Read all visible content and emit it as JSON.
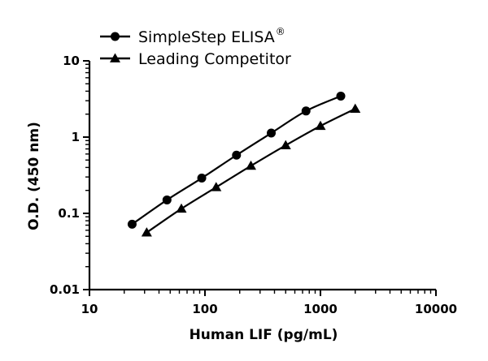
{
  "chart_data": {
    "type": "line",
    "xlabel": "Human LIF (pg/mL)",
    "ylabel": "O.D. (450 nm)",
    "x_scale": "log",
    "y_scale": "log",
    "xlim": [
      10,
      10000
    ],
    "ylim": [
      0.01,
      10
    ],
    "x_ticks": [
      10,
      100,
      1000,
      10000
    ],
    "x_tick_labels": [
      "10",
      "100",
      "1000",
      "10000"
    ],
    "y_ticks": [
      0.01,
      0.1,
      1,
      10
    ],
    "y_tick_labels": [
      "0.01",
      "0.1",
      "1",
      "10"
    ],
    "grid": false,
    "legend_position": "top-left",
    "series": [
      {
        "name": "SimpleStep ELISA",
        "name_sup": "®",
        "marker": "circle",
        "color": "#000000",
        "x": [
          23.4,
          46.9,
          93.8,
          187.5,
          375,
          750,
          1500
        ],
        "y": [
          0.072,
          0.15,
          0.29,
          0.58,
          1.13,
          2.2,
          3.45
        ]
      },
      {
        "name": "Leading Competitor",
        "marker": "triangle",
        "color": "#000000",
        "x": [
          31.3,
          62.5,
          125,
          250,
          500,
          1000,
          2000
        ],
        "y": [
          0.056,
          0.115,
          0.22,
          0.42,
          0.78,
          1.4,
          2.35
        ]
      }
    ]
  }
}
